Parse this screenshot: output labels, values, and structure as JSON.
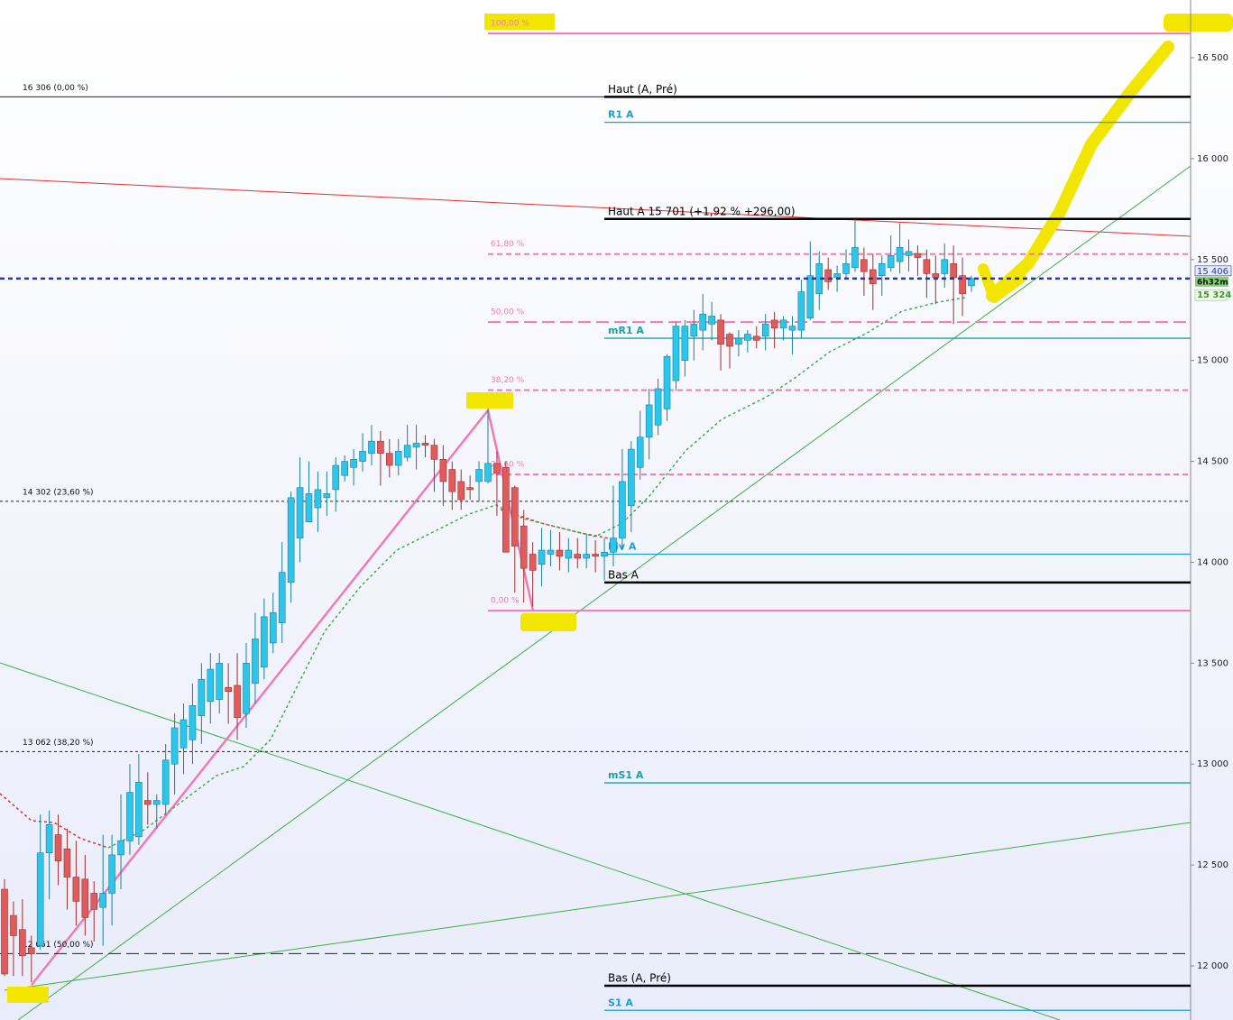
{
  "chart_data": {
    "type": "candlestick",
    "up_color": "#2cc6ea",
    "down_color": "#e25b5b",
    "ylim": [
      11732,
      16786
    ],
    "yticks": [
      {
        "value": 12000,
        "label": "12 000"
      },
      {
        "value": 12500,
        "label": "12 500"
      },
      {
        "value": 13000,
        "label": "13 000"
      },
      {
        "value": 13500,
        "label": "13 500"
      },
      {
        "value": 14000,
        "label": "14 000"
      },
      {
        "value": 14500,
        "label": "14 500"
      },
      {
        "value": 15000,
        "label": "15 000"
      },
      {
        "value": 15500,
        "label": "15 500"
      },
      {
        "value": 16000,
        "label": "16 000"
      },
      {
        "value": 16500,
        "label": "16 500"
      }
    ],
    "open": [
      12380,
      12250,
      12180,
      12090,
      12100,
      12560,
      12650,
      12580,
      12440,
      12430,
      12360,
      12290,
      12360,
      12550,
      12620,
      12640,
      12820,
      12800,
      12800,
      13000,
      13080,
      13120,
      13240,
      13310,
      13320,
      13380,
      13390,
      13250,
      13400,
      13480,
      13600,
      13700,
      13900,
      14120,
      14200,
      14270,
      14320,
      14360,
      14430,
      14470,
      14500,
      14540,
      14600,
      14540,
      14480,
      14520,
      14570,
      14590,
      14580,
      14510,
      14460,
      14400,
      14370,
      14400,
      14400,
      14490,
      14470,
      14370,
      14180,
      14040,
      13990,
      14040,
      14060,
      14020,
      14040,
      14020,
      14040,
      14030,
      14050,
      14120,
      14280,
      14470,
      14620,
      14680,
      14760,
      14900,
      15000,
      15120,
      15150,
      15180,
      15200,
      15130,
      15080,
      15100,
      15120,
      15120,
      15200,
      15160,
      15150,
      15150,
      15210,
      15330,
      15450,
      15410,
      15430,
      15460,
      15500,
      15450,
      15420,
      15460,
      15490,
      15520,
      15530,
      15500,
      15430,
      15430,
      15480,
      15420,
      15370
    ],
    "high": [
      12430,
      12320,
      12330,
      12150,
      12750,
      12770,
      12750,
      12680,
      12620,
      12550,
      12420,
      12650,
      12650,
      12850,
      13000,
      13050,
      12960,
      12850,
      13100,
      13250,
      13300,
      13400,
      13500,
      13550,
      13550,
      13500,
      13550,
      13600,
      13750,
      13820,
      13850,
      14100,
      14350,
      14520,
      14500,
      14450,
      14450,
      14520,
      14530,
      14560,
      14640,
      14680,
      14650,
      14610,
      14610,
      14680,
      14680,
      14630,
      14610,
      14580,
      14500,
      14460,
      14430,
      14500,
      14760,
      14550,
      14500,
      14380,
      14260,
      14100,
      14170,
      14160,
      14150,
      14120,
      14120,
      14140,
      14110,
      14120,
      14380,
      14560,
      14600,
      14750,
      14860,
      14910,
      15030,
      15190,
      15200,
      15250,
      15330,
      15290,
      15230,
      15140,
      15150,
      15150,
      15170,
      15230,
      15240,
      15220,
      15220,
      15400,
      15590,
      15540,
      15510,
      15470,
      15550,
      15700,
      15560,
      15530,
      15520,
      15620,
      15680,
      15600,
      15570,
      15550,
      15520,
      15580,
      15570,
      15510,
      15420
    ],
    "low": [
      11950,
      11950,
      11950,
      11920,
      12080,
      12330,
      12400,
      12280,
      12200,
      12150,
      12120,
      12100,
      12200,
      12380,
      12550,
      12600,
      12700,
      12680,
      12750,
      12850,
      12950,
      13000,
      13100,
      13200,
      13250,
      13200,
      13120,
      13180,
      13300,
      13420,
      13550,
      13600,
      13800,
      14000,
      14200,
      14150,
      14230,
      14250,
      14400,
      14380,
      14450,
      14480,
      14380,
      14420,
      14430,
      14500,
      14460,
      14520,
      14350,
      14280,
      14260,
      14260,
      14310,
      14300,
      14390,
      14230,
      14050,
      13850,
      13800,
      13780,
      13880,
      13980,
      13960,
      13950,
      13970,
      13970,
      13950,
      13910,
      13980,
      14060,
      14150,
      14410,
      14510,
      14630,
      14700,
      14850,
      14920,
      15000,
      15050,
      15100,
      14950,
      14960,
      15020,
      15040,
      15060,
      15050,
      15060,
      15100,
      15030,
      15110,
      15200,
      15250,
      15350,
      15340,
      15400,
      15440,
      15320,
      15250,
      15320,
      15440,
      15430,
      15440,
      15420,
      15310,
      15280,
      15360,
      15180,
      15220,
      15340
    ],
    "close": [
      11960,
      12150,
      12050,
      12060,
      12560,
      12700,
      12520,
      12440,
      12320,
      12240,
      12280,
      12360,
      12550,
      12620,
      12860,
      12910,
      12800,
      12820,
      13020,
      13180,
      13220,
      13290,
      13420,
      13470,
      13500,
      13360,
      13230,
      13500,
      13620,
      13730,
      13750,
      13950,
      14320,
      14370,
      14340,
      14360,
      14340,
      14480,
      14500,
      14510,
      14550,
      14600,
      14540,
      14480,
      14550,
      14580,
      14590,
      14580,
      14510,
      14400,
      14350,
      14310,
      14360,
      14460,
      14490,
      14440,
      14050,
      14080,
      13970,
      13960,
      14060,
      14060,
      14030,
      14060,
      14020,
      14040,
      14030,
      14050,
      14120,
      14400,
      14560,
      14620,
      14780,
      14860,
      15020,
      15170,
      15170,
      15180,
      15230,
      15220,
      15080,
      15070,
      15110,
      15130,
      15100,
      15180,
      15160,
      15200,
      15170,
      15340,
      15420,
      15480,
      15390,
      15430,
      15480,
      15560,
      15440,
      15380,
      15480,
      15520,
      15560,
      15540,
      15510,
      15430,
      15410,
      15500,
      15410,
      15330,
      15406
    ],
    "full_levels": [
      {
        "label": "16 306 (0,00 %)",
        "value": 16306,
        "style": "solid"
      },
      {
        "label": "14 302 (23,60 %)",
        "value": 14302,
        "style": "dashed"
      },
      {
        "label": "13 062 (38,20 %)",
        "value": 13062,
        "style": "dashed"
      },
      {
        "label": "12 061 (50,00 %)",
        "value": 12061,
        "style": "longdash"
      }
    ],
    "fibonacci_levels": [
      {
        "label": "100,00 %",
        "value": 16620,
        "style": "solid"
      },
      {
        "label": "61,80 %",
        "value": 15527,
        "style": "dashed"
      },
      {
        "label": "50,00 %",
        "value": 15190,
        "style": "longdash"
      },
      {
        "label": "38,20 %",
        "value": 14853,
        "style": "dashed"
      },
      {
        "label": "23,60 %",
        "value": 14435,
        "style": "dashed"
      },
      {
        "label": "0,00 %",
        "value": 13760,
        "style": "solid"
      }
    ],
    "fibonacci_color": "#f07ab8",
    "pivot_levels": [
      {
        "label": "Haut (A, Pré)",
        "value": 16306,
        "color": "#000000"
      },
      {
        "label": "R1 A",
        "value": 16180,
        "color": "#1a9fd6"
      },
      {
        "label": "Haut A 15 701 (+1,92 % +296,00)",
        "value": 15701,
        "color": "#000000"
      },
      {
        "label": "mR1 A",
        "value": 15110,
        "color": "#1aa0a8"
      },
      {
        "label": "Piv A",
        "value": 14040,
        "color": "#1a9fd6"
      },
      {
        "label": "Bas A",
        "value": 13900,
        "color": "#000000"
      },
      {
        "label": "mS1 A",
        "value": 12907,
        "color": "#1aa0a8"
      },
      {
        "label": "Bas (A, Pré)",
        "value": 11902,
        "color": "#000000"
      },
      {
        "label": "S1 A",
        "value": 11780,
        "color": "#1a9fd6"
      }
    ],
    "price_line": {
      "value": 15406,
      "label": "15 406",
      "countdown": "6h32m",
      "color": "#2a35a8"
    },
    "ma_label": {
      "value": 15324,
      "label": "15 324",
      "color": "#7fd36a"
    }
  }
}
